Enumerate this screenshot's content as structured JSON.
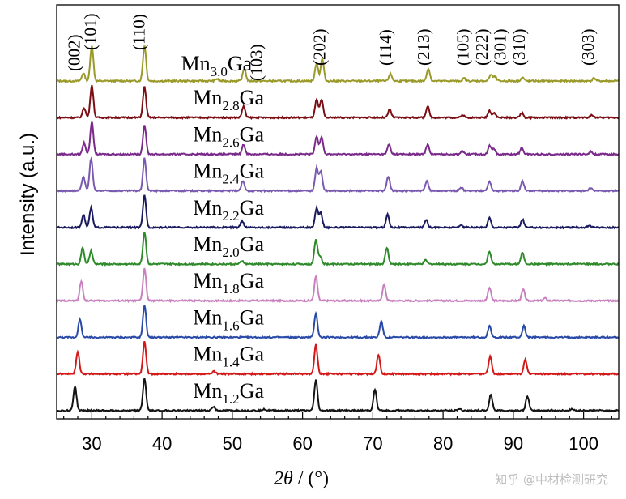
{
  "chart_data": {
    "type": "line",
    "xlabel_italic": "2θ",
    "xlabel_rest": " / (°)",
    "ylabel": "Intensity (a.u.)",
    "xlim": [
      25,
      105
    ],
    "xticks": [
      30,
      40,
      50,
      60,
      70,
      80,
      90,
      100
    ],
    "xtick_labels": [
      "30",
      "40",
      "50",
      "60",
      "70",
      "80",
      "90",
      "100"
    ],
    "grid": false,
    "legend": "inline labels",
    "series": [
      {
        "name": "Mn3.0Ga",
        "base": "Mn",
        "sub": "3.0",
        "tail": "Ga",
        "color": "#9a9a2a",
        "peaks": [
          [
            28.8,
            0.22
          ],
          [
            30.0,
            1.0
          ],
          [
            37.5,
            1.0
          ],
          [
            47.8,
            0.06
          ],
          [
            51.7,
            0.35
          ],
          [
            62.0,
            0.5
          ],
          [
            62.8,
            0.62
          ],
          [
            72.5,
            0.2
          ],
          [
            77.9,
            0.35
          ],
          [
            83.0,
            0.08
          ],
          [
            86.8,
            0.18
          ],
          [
            87.4,
            0.12
          ],
          [
            91.3,
            0.1
          ],
          [
            101.5,
            0.08
          ]
        ]
      },
      {
        "name": "Mn2.8Ga",
        "base": "Mn",
        "sub": "2.8",
        "tail": "Ga",
        "color": "#7b0e14",
        "peaks": [
          [
            28.9,
            0.3
          ],
          [
            30.0,
            1.0
          ],
          [
            37.5,
            0.95
          ],
          [
            51.6,
            0.35
          ],
          [
            62.0,
            0.55
          ],
          [
            62.7,
            0.55
          ],
          [
            72.4,
            0.25
          ],
          [
            77.8,
            0.35
          ],
          [
            82.8,
            0.08
          ],
          [
            86.6,
            0.22
          ],
          [
            87.3,
            0.15
          ],
          [
            91.2,
            0.15
          ],
          [
            101.2,
            0.08
          ]
        ]
      },
      {
        "name": "Mn2.6Ga",
        "base": "Mn",
        "sub": "2.6",
        "tail": "Ga",
        "color": "#7a2a8a",
        "peaks": [
          [
            28.9,
            0.35
          ],
          [
            30.0,
            1.0
          ],
          [
            37.5,
            0.9
          ],
          [
            51.6,
            0.3
          ],
          [
            62.0,
            0.55
          ],
          [
            62.7,
            0.55
          ],
          [
            72.3,
            0.3
          ],
          [
            77.8,
            0.3
          ],
          [
            82.7,
            0.1
          ],
          [
            86.6,
            0.25
          ],
          [
            87.2,
            0.18
          ],
          [
            91.2,
            0.2
          ],
          [
            101.0,
            0.08
          ]
        ]
      },
      {
        "name": "Mn2.4Ga",
        "base": "Mn",
        "sub": "2.4",
        "tail": "Ga",
        "color": "#7a5ab0",
        "peaks": [
          [
            28.8,
            0.45
          ],
          [
            29.9,
            1.0
          ],
          [
            37.5,
            1.0
          ],
          [
            51.5,
            0.3
          ],
          [
            62.0,
            0.7
          ],
          [
            62.6,
            0.6
          ],
          [
            72.2,
            0.45
          ],
          [
            77.7,
            0.3
          ],
          [
            82.6,
            0.1
          ],
          [
            86.6,
            0.3
          ],
          [
            91.3,
            0.3
          ],
          [
            101.0,
            0.08
          ]
        ]
      },
      {
        "name": "Mn2.2Ga",
        "base": "Mn",
        "sub": "2.2",
        "tail": "Ga",
        "color": "#1a1a5e",
        "peaks": [
          [
            28.8,
            0.4
          ],
          [
            29.9,
            0.6
          ],
          [
            37.5,
            1.0
          ],
          [
            51.4,
            0.2
          ],
          [
            62.0,
            0.6
          ],
          [
            62.6,
            0.45
          ],
          [
            72.1,
            0.4
          ],
          [
            77.6,
            0.25
          ],
          [
            82.5,
            0.08
          ],
          [
            86.6,
            0.3
          ],
          [
            91.3,
            0.25
          ],
          [
            100.8,
            0.06
          ]
        ]
      },
      {
        "name": "Mn2.0Ga",
        "base": "Mn",
        "sub": "2.0",
        "tail": "Ga",
        "color": "#2e8a2a",
        "peaks": [
          [
            28.7,
            0.5
          ],
          [
            29.9,
            0.4
          ],
          [
            37.5,
            1.0
          ],
          [
            51.4,
            0.1
          ],
          [
            61.9,
            0.75
          ],
          [
            62.5,
            0.25
          ],
          [
            72.0,
            0.5
          ],
          [
            77.5,
            0.12
          ],
          [
            86.6,
            0.4
          ],
          [
            91.3,
            0.35
          ]
        ]
      },
      {
        "name": "Mn1.8Ga",
        "base": "Mn",
        "sub": "1.8",
        "tail": "Ga",
        "color": "#c882c0",
        "peaks": [
          [
            28.5,
            0.6
          ],
          [
            37.5,
            1.0
          ],
          [
            61.9,
            0.75
          ],
          [
            71.6,
            0.5
          ],
          [
            86.6,
            0.4
          ],
          [
            91.4,
            0.35
          ],
          [
            94.5,
            0.08
          ]
        ]
      },
      {
        "name": "Mn1.6Ga",
        "base": "Mn",
        "sub": "1.6",
        "tail": "Ga",
        "color": "#2a4aa8",
        "peaks": [
          [
            28.3,
            0.55
          ],
          [
            37.5,
            1.0
          ],
          [
            61.9,
            0.75
          ],
          [
            71.2,
            0.5
          ],
          [
            86.6,
            0.35
          ],
          [
            91.5,
            0.35
          ]
        ]
      },
      {
        "name": "Mn1.4Ga",
        "base": "Mn",
        "sub": "1.4",
        "tail": "Ga",
        "color": "#d41818",
        "peaks": [
          [
            28.0,
            0.7
          ],
          [
            37.5,
            1.0
          ],
          [
            47.4,
            0.08
          ],
          [
            61.9,
            0.9
          ],
          [
            70.8,
            0.6
          ],
          [
            86.7,
            0.55
          ],
          [
            91.7,
            0.45
          ]
        ]
      },
      {
        "name": "Mn1.2Ga",
        "base": "Mn",
        "sub": "1.2",
        "tail": "Ga",
        "color": "#141414",
        "peaks": [
          [
            27.6,
            0.75
          ],
          [
            37.5,
            1.0
          ],
          [
            47.3,
            0.12
          ],
          [
            54.5,
            0.05
          ],
          [
            61.9,
            0.95
          ],
          [
            70.3,
            0.65
          ],
          [
            82.3,
            0.05
          ],
          [
            86.8,
            0.5
          ],
          [
            92.0,
            0.45
          ],
          [
            98.3,
            0.05
          ]
        ]
      }
    ],
    "annotations": [
      {
        "text": "(002)",
        "x": 28.3
      },
      {
        "text": "(101)",
        "x": 30.6
      },
      {
        "text": "(110)",
        "x": 37.5
      },
      {
        "text": "(103)",
        "x": 54.2
      },
      {
        "text": "(202)",
        "x": 63.2
      },
      {
        "text": "(114)",
        "x": 72.6
      },
      {
        "text": "(213)",
        "x": 78.0
      },
      {
        "text": "(105)",
        "x": 83.6
      },
      {
        "text": "(222)",
        "x": 86.3
      },
      {
        "text": "(301)",
        "x": 88.9
      },
      {
        "text": "(310)",
        "x": 91.6
      },
      {
        "text": "(303)",
        "x": 101.4
      }
    ]
  },
  "watermark": "知乎 @中材检测研究"
}
